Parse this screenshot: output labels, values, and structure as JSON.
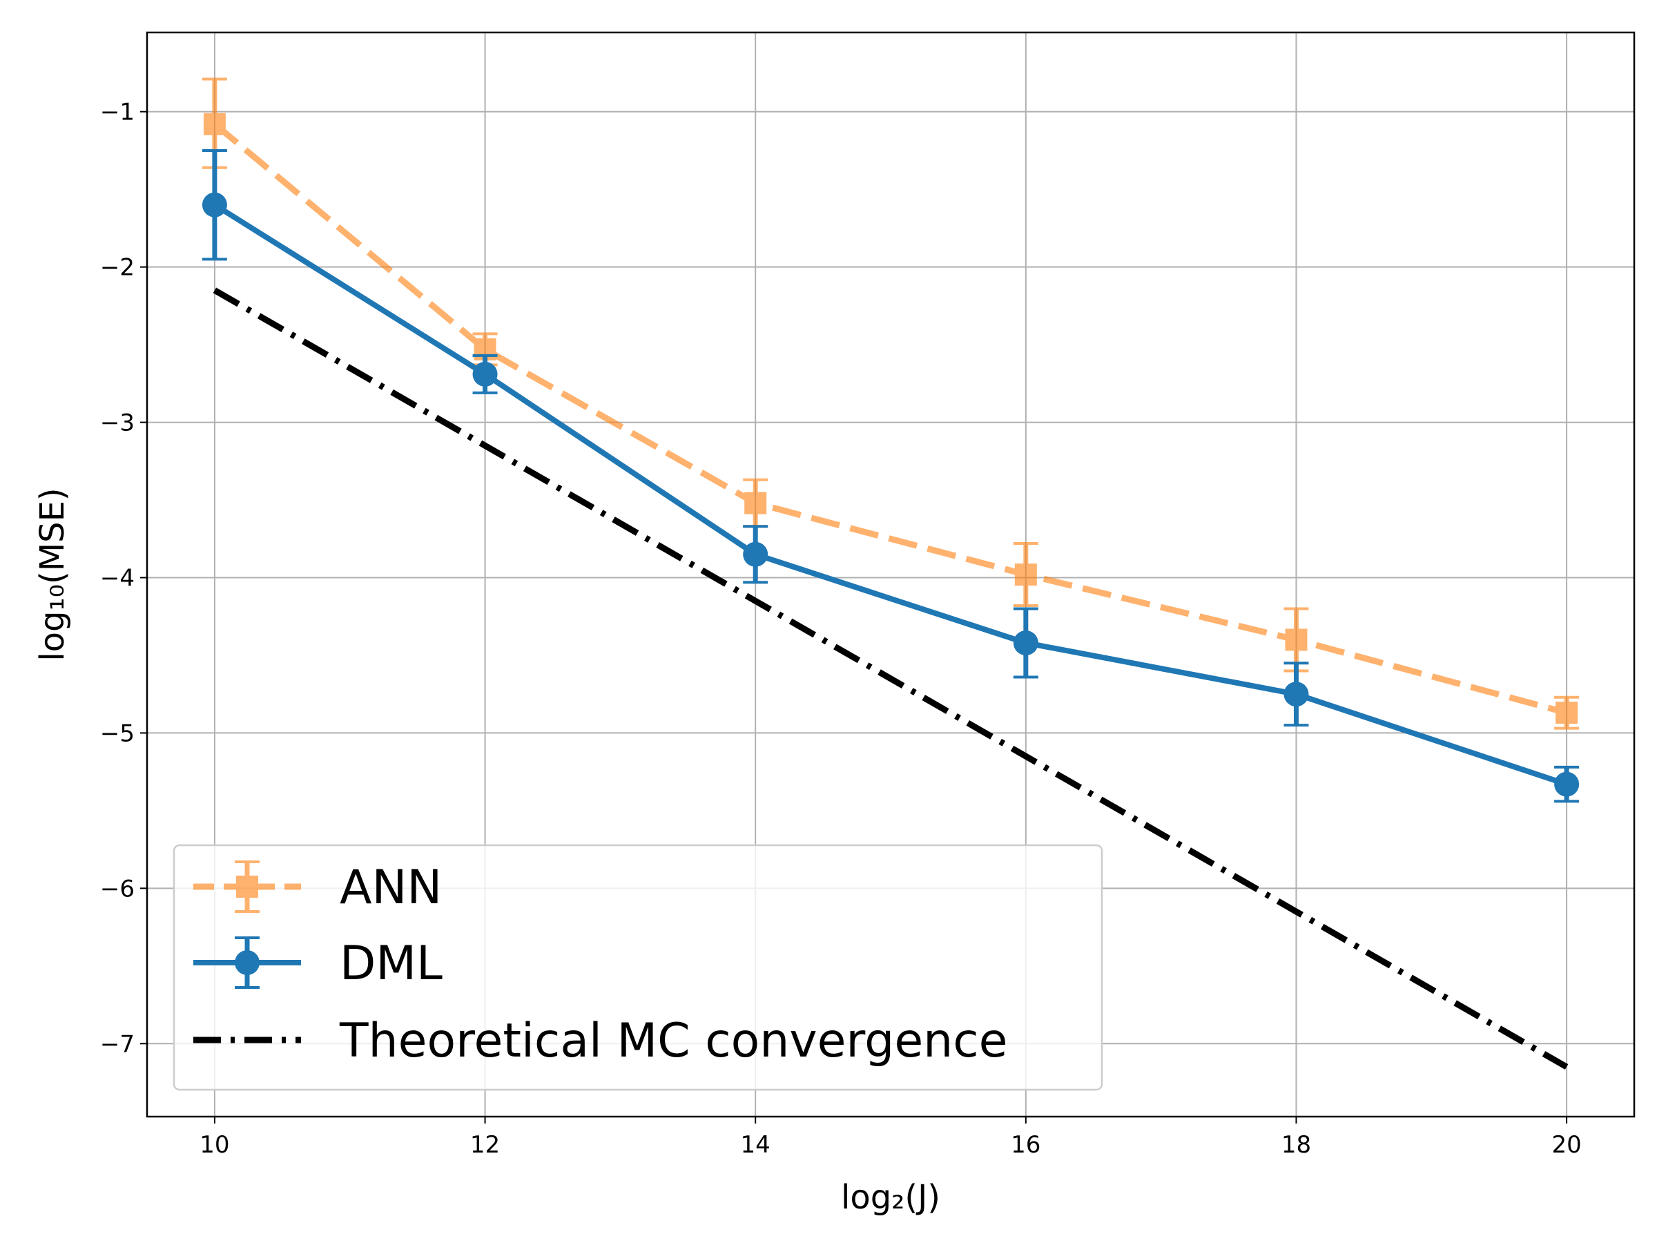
{
  "chart_data": {
    "type": "line",
    "title": "",
    "xlabel": "log₂(J)",
    "ylabel": "log₁₀(MSE)",
    "xlim": [
      9.5,
      20.5
    ],
    "ylim": [
      -7.47,
      -0.49
    ],
    "xticks": [
      10,
      12,
      14,
      16,
      18,
      20
    ],
    "yticks": [
      -1,
      -2,
      -3,
      -4,
      -5,
      -6,
      -7
    ],
    "xtick_labels": [
      "10",
      "12",
      "14",
      "16",
      "18",
      "20"
    ],
    "ytick_labels": [
      "−1",
      "−2",
      "−3",
      "−4",
      "−5",
      "−6",
      "−7"
    ],
    "grid": true,
    "legend_position": "lower-left",
    "x": [
      10,
      12,
      14,
      16,
      18,
      20
    ],
    "series": [
      {
        "name": "ANN",
        "style": "dashed",
        "marker": "square",
        "color": "#ff7f0e",
        "opacity": 0.6,
        "values": [
          -1.08,
          -2.53,
          -3.52,
          -3.98,
          -4.4,
          -4.87
        ],
        "err_low": [
          0.28,
          0.1,
          0.15,
          0.2,
          0.2,
          0.1
        ],
        "err_high": [
          0.29,
          0.1,
          0.15,
          0.2,
          0.2,
          0.1
        ]
      },
      {
        "name": "DML",
        "style": "solid",
        "marker": "circle",
        "color": "#1f77b4",
        "opacity": 1,
        "values": [
          -1.6,
          -2.69,
          -3.85,
          -4.42,
          -4.75,
          -5.33
        ],
        "err_low": [
          0.35,
          0.12,
          0.18,
          0.22,
          0.2,
          0.11
        ],
        "err_high": [
          0.35,
          0.12,
          0.18,
          0.22,
          0.2,
          0.11
        ]
      },
      {
        "name": "Theoretical MC convergence",
        "style": "dashdot",
        "marker": "none",
        "color": "#000000",
        "opacity": 1,
        "values": [
          -2.15,
          -3.15,
          -4.15,
          -5.15,
          -6.15,
          -7.15
        ]
      }
    ]
  }
}
